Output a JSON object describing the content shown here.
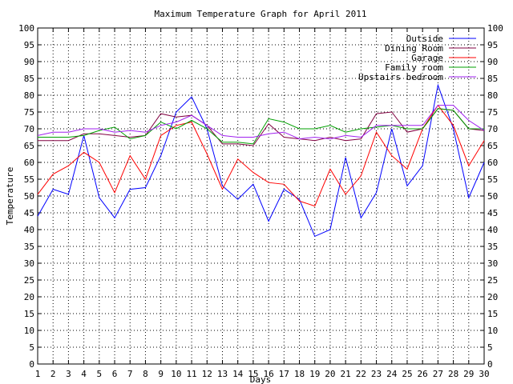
{
  "chart_data": {
    "type": "line",
    "title": "Maximum Temperature Graph for April 2011",
    "xlabel": "Days",
    "ylabel": "Temperature",
    "xlim": [
      1,
      30
    ],
    "ylim": [
      0,
      100
    ],
    "x_ticks": [
      1,
      2,
      3,
      4,
      5,
      6,
      7,
      8,
      9,
      10,
      11,
      12,
      13,
      14,
      15,
      16,
      17,
      18,
      19,
      20,
      21,
      22,
      23,
      24,
      25,
      26,
      27,
      28,
      29,
      30
    ],
    "y_ticks": [
      0,
      5,
      10,
      15,
      20,
      25,
      30,
      35,
      40,
      45,
      50,
      55,
      60,
      65,
      70,
      75,
      80,
      85,
      90,
      95,
      100
    ],
    "grid": true,
    "legend_position": "top-right",
    "x": [
      1,
      2,
      3,
      4,
      5,
      6,
      7,
      8,
      9,
      10,
      11,
      12,
      13,
      14,
      15,
      16,
      17,
      18,
      19,
      20,
      21,
      22,
      23,
      24,
      25,
      26,
      27,
      28,
      29,
      30
    ],
    "series": [
      {
        "name": "Outside",
        "color": "#0000ff",
        "values": [
          44,
          52,
          50.5,
          68,
          49.5,
          43.5,
          52,
          52.5,
          62,
          75,
          79.5,
          70,
          53,
          49,
          53.5,
          42.5,
          52,
          49,
          38,
          40,
          61.5,
          43.5,
          51,
          70,
          53,
          59,
          83,
          70,
          49.5,
          60
        ]
      },
      {
        "name": "Dining Room",
        "color": "#800040",
        "values": [
          66.5,
          66.5,
          66.5,
          68.5,
          68.5,
          68,
          67.5,
          68,
          74.5,
          73.5,
          74,
          71,
          65.5,
          65.5,
          65,
          71.5,
          67.5,
          67,
          66.5,
          67.5,
          66.5,
          67,
          74.5,
          75,
          69,
          70,
          76,
          75.5,
          70,
          69.5
        ]
      },
      {
        "name": "Garage",
        "color": "#ff0000",
        "values": [
          50.5,
          56.5,
          59,
          63,
          60,
          51,
          62,
          55,
          68,
          71,
          72,
          62.5,
          52,
          61,
          57,
          54,
          53.5,
          48.5,
          47,
          58,
          50.5,
          56,
          69,
          62,
          58,
          70,
          77,
          71,
          59,
          66.5
        ]
      },
      {
        "name": "Family room",
        "color": "#00a000",
        "values": [
          67.5,
          67.5,
          67.5,
          68,
          69.5,
          70.5,
          67,
          68,
          72,
          70,
          72.5,
          70,
          66,
          66,
          65.5,
          73,
          72,
          70,
          70,
          71,
          69,
          70,
          70.5,
          71,
          70,
          70,
          76,
          75.5,
          70,
          70
        ]
      },
      {
        "name": "Upstairs bedroom",
        "color": "#a020f0",
        "values": [
          68,
          69,
          69,
          70,
          70,
          69,
          69.5,
          69,
          71,
          72,
          74,
          71,
          68,
          67.5,
          67.5,
          68.5,
          69,
          67,
          67.5,
          67,
          68,
          67.5,
          71,
          71,
          71,
          71,
          77,
          77,
          72.5,
          69.5
        ]
      }
    ]
  }
}
